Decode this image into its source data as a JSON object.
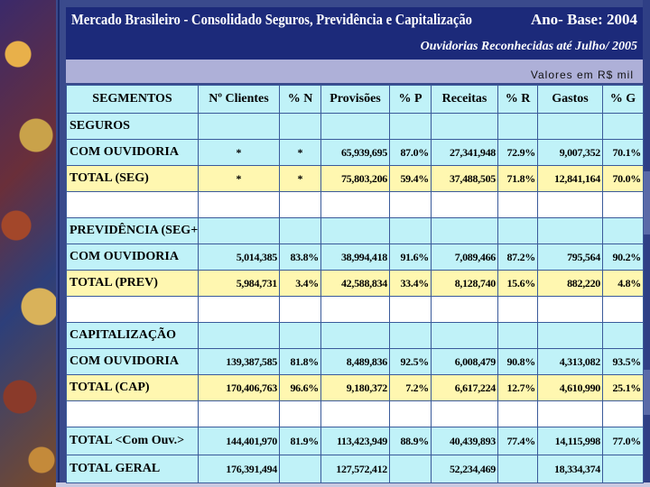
{
  "header": {
    "title": "Mercado Brasileiro - Consolidado Seguros, Previdência e Capitalização",
    "base_year": "Ano- Base: 2004",
    "subtitle": "Ouvidorias Reconhecidas até Julho/ 2005",
    "values_note": "Valores em R$ mil"
  },
  "columns": [
    "SEGMENTOS",
    "Nº Clientes",
    "% N",
    "Provisões",
    "% P",
    "Receitas",
    "% R",
    "Gastos",
    "% G"
  ],
  "rows": [
    {
      "segmento": "SEGUROS",
      "style": "cyan",
      "cells": [
        "",
        "",
        "",
        "",
        "",
        "",
        "",
        ""
      ]
    },
    {
      "segmento": "COM OUVIDORIA",
      "style": "cyan",
      "cells": [
        "*",
        "*",
        "65,939,695",
        "87.0%",
        "27,341,948",
        "72.9%",
        "9,007,352",
        "70.1%"
      ]
    },
    {
      "segmento": "TOTAL (SEG)",
      "style": "yellow",
      "cells": [
        "*",
        "*",
        "75,803,206",
        "59.4%",
        "37,488,505",
        "71.8%",
        "12,841,164",
        "70.0%"
      ]
    },
    {
      "segmento": "",
      "style": "white",
      "cells": [
        "",
        "",
        "",
        "",
        "",
        "",
        "",
        ""
      ]
    },
    {
      "segmento": "PREVIDÊNCIA (SEG+EAPP)",
      "style": "cyan",
      "cells": [
        "",
        "",
        "",
        "",
        "",
        "",
        "",
        ""
      ]
    },
    {
      "segmento": "COM OUVIDORIA",
      "style": "cyan",
      "cells": [
        "5,014,385",
        "83.8%",
        "38,994,418",
        "91.6%",
        "7,089,466",
        "87.2%",
        "795,564",
        "90.2%"
      ]
    },
    {
      "segmento": "TOTAL (PREV)",
      "style": "yellow",
      "cells": [
        "5,984,731",
        "3.4%",
        "42,588,834",
        "33.4%",
        "8,128,740",
        "15.6%",
        "882,220",
        "4.8%"
      ]
    },
    {
      "segmento": "",
      "style": "white",
      "cells": [
        "",
        "",
        "",
        "",
        "",
        "",
        "",
        ""
      ]
    },
    {
      "segmento": "CAPITALIZAÇÃO",
      "style": "cyan",
      "cells": [
        "",
        "",
        "",
        "",
        "",
        "",
        "",
        ""
      ]
    },
    {
      "segmento": "COM OUVIDORIA",
      "style": "cyan",
      "cells": [
        "139,387,585",
        "81.8%",
        "8,489,836",
        "92.5%",
        "6,008,479",
        "90.8%",
        "4,313,082",
        "93.5%"
      ]
    },
    {
      "segmento": "TOTAL (CAP)",
      "style": "yellow",
      "cells": [
        "170,406,763",
        "96.6%",
        "9,180,372",
        "7.2%",
        "6,617,224",
        "12.7%",
        "4,610,990",
        "25.1%"
      ]
    },
    {
      "segmento": "",
      "style": "white",
      "cells": [
        "",
        "",
        "",
        "",
        "",
        "",
        "",
        ""
      ]
    },
    {
      "segmento": "TOTAL <Com Ouv.>",
      "style": "cyan",
      "cells": [
        "144,401,970",
        "81.9%",
        "113,423,949",
        "88.9%",
        "40,439,893",
        "77.4%",
        "14,115,998",
        "77.0%"
      ]
    },
    {
      "segmento": "TOTAL GERAL",
      "style": "cyan",
      "cells": [
        "176,391,494",
        "",
        "127,572,412",
        "",
        "52,234,469",
        "",
        "18,334,374",
        ""
      ]
    }
  ]
}
